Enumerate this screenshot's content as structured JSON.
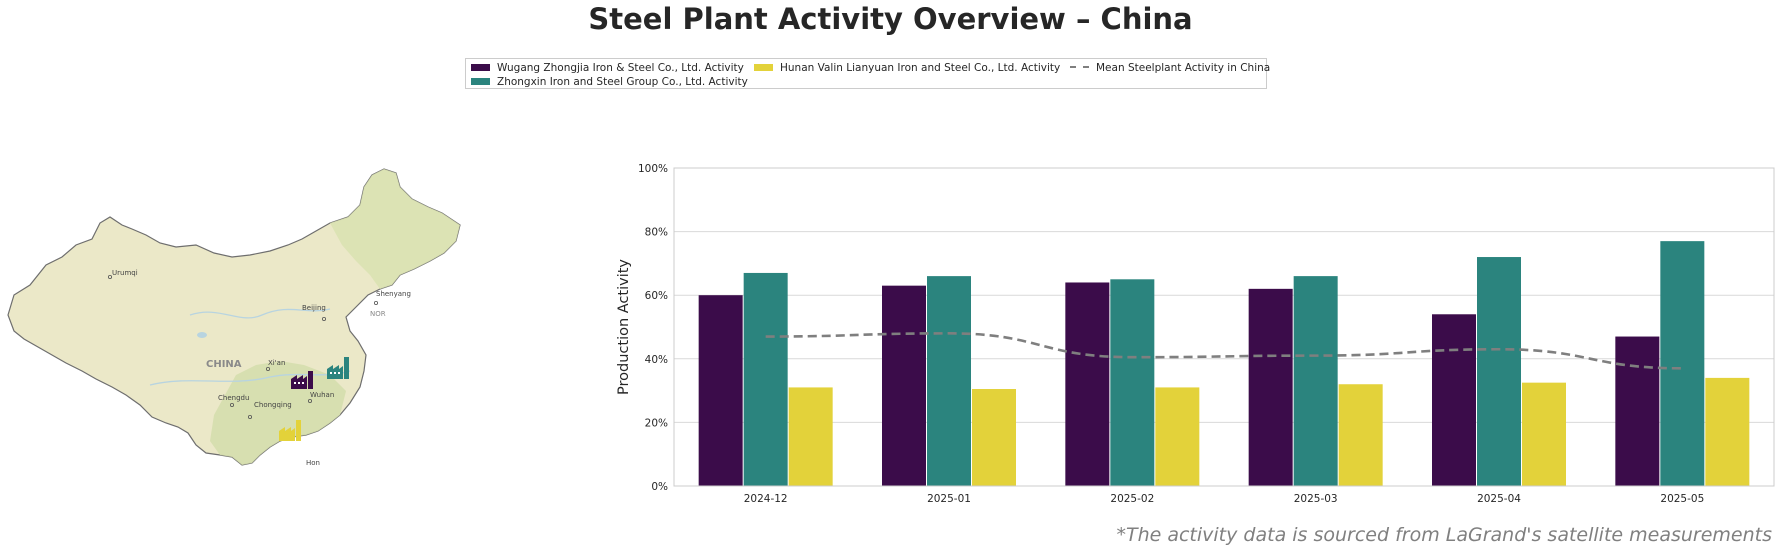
{
  "title": "Steel Plant Activity Overview – China",
  "footnote": "*The activity data is sourced from LaGrand's satellite measurements",
  "legend": {
    "items": [
      {
        "label": "Wugang Zhongjia Iron & Steel Co., Ltd. Activity",
        "color": "#3b0c4a",
        "kind": "bar"
      },
      {
        "label": "Zhongxin Iron and Steel Group Co., Ltd. Activity",
        "color": "#2b847e",
        "kind": "bar"
      },
      {
        "label": "Hunan Valin Lianyuan Iron and Steel Co., Ltd. Activity",
        "color": "#e3d23a",
        "kind": "bar"
      },
      {
        "label": "Mean Steelplant Activity in China",
        "color": "#7f7f7f",
        "kind": "line"
      }
    ]
  },
  "map": {
    "country_label": "CHINA",
    "cities": [
      "Urumqi",
      "Beijing",
      "Shenyang",
      "Xi'an",
      "Chengdu",
      "Chongqing",
      "Wuhan",
      "NOR",
      "Hon"
    ],
    "plant_icon": "factory-icon",
    "land_color": "#ebe8c8",
    "border_color": "#6e6e6e"
  },
  "chart_data": {
    "type": "bar",
    "categories": [
      "2024-12",
      "2025-01",
      "2025-02",
      "2025-03",
      "2025-04",
      "2025-05"
    ],
    "series": [
      {
        "name": "Wugang Zhongjia Iron & Steel Co., Ltd. Activity",
        "values": [
          60,
          63,
          64,
          62,
          54,
          47
        ],
        "color": "#3b0c4a"
      },
      {
        "name": "Zhongxin Iron and Steel Group Co., Ltd. Activity",
        "values": [
          67,
          66,
          65,
          66,
          72,
          77
        ],
        "color": "#2b847e"
      },
      {
        "name": "Hunan Valin Lianyuan Iron and Steel Co., Ltd. Activity",
        "values": [
          31,
          30.5,
          31,
          32,
          32.5,
          34
        ],
        "color": "#e3d23a"
      }
    ],
    "line": {
      "name": "Mean Steelplant Activity in China",
      "values": [
        47,
        48,
        40.5,
        41,
        43,
        37
      ],
      "color": "#7f7f7f",
      "style": "dashed"
    },
    "ylabel": "Production Activity",
    "xlabel": "",
    "ylim": [
      0,
      100
    ],
    "yticks": [
      0,
      20,
      40,
      60,
      80,
      100
    ],
    "ytick_labels": [
      "0%",
      "20%",
      "40%",
      "60%",
      "80%",
      "100%"
    ],
    "grid": "horizontal",
    "legend_position": "top-center"
  }
}
